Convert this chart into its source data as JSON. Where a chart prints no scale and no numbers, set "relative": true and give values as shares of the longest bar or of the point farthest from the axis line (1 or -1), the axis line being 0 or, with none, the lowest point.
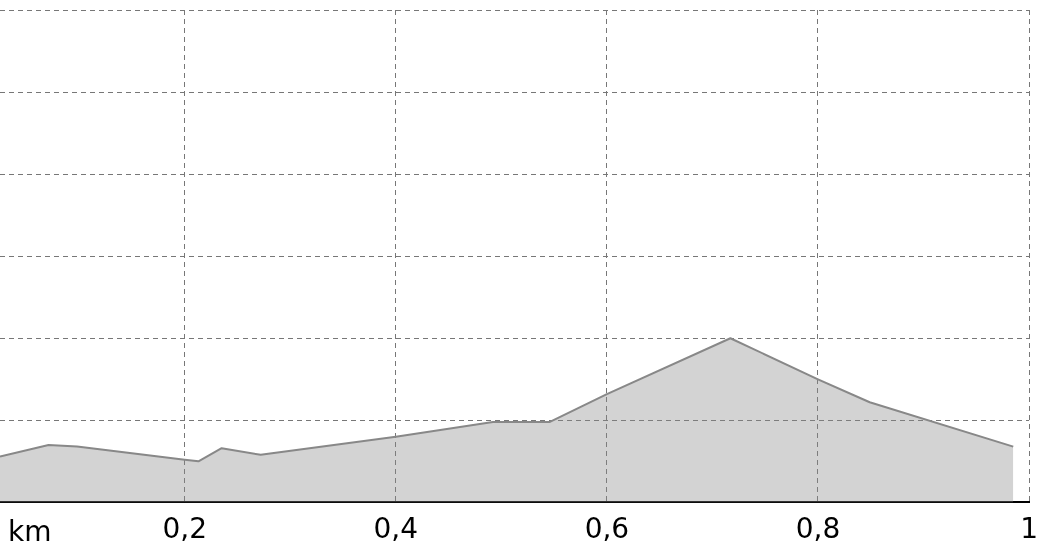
{
  "chart_data": {
    "type": "area",
    "xlabel": "km",
    "relative": true,
    "x": [
      0.025,
      0.071,
      0.098,
      0.2,
      0.213,
      0.235,
      0.272,
      0.4,
      0.492,
      0.546,
      0.6,
      0.717,
      0.8,
      0.849,
      0.985
    ],
    "series": [
      {
        "color": "#888888",
        "values": [
          0.28,
          0.35,
          0.34,
          0.26,
          0.25,
          0.33,
          0.29,
          0.4,
          0.49,
          0.49,
          0.66,
          1,
          0.75,
          0.61,
          0.34
        ]
      }
    ],
    "xlim": [
      0.025,
      1.0
    ],
    "xticks": [
      {
        "value": 0.2,
        "label": "0,2"
      },
      {
        "value": 0.4,
        "label": "0,4"
      },
      {
        "value": 0.6,
        "label": "0,6"
      },
      {
        "value": 0.8,
        "label": "0,8"
      },
      {
        "value": 1,
        "label": "1"
      }
    ],
    "grid": true,
    "legend": false,
    "marker": "none",
    "line_style": "solid"
  }
}
